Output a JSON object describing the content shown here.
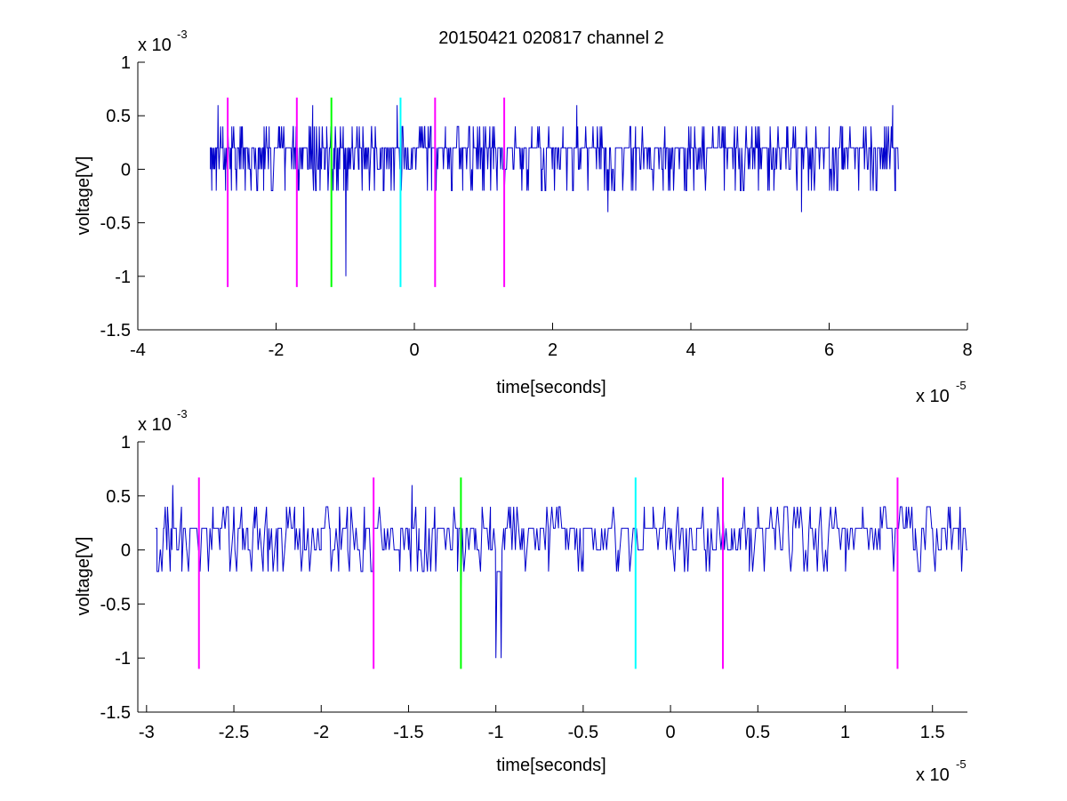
{
  "chart_data": [
    {
      "type": "line",
      "title": "20150421 020817 channel 2",
      "xlabel": "time[seconds]",
      "ylabel": "voltage[V]",
      "x_multiplier": {
        "base": "x 10",
        "exponent": "-5"
      },
      "y_multiplier": {
        "base": "x 10",
        "exponent": "-3"
      },
      "xlim": [
        -4,
        8
      ],
      "ylim": [
        -1.5,
        1
      ],
      "x_ticks": [
        -4,
        -2,
        0,
        2,
        4,
        6,
        8
      ],
      "x_tick_labels": [
        "-4",
        "-2",
        "0",
        "2",
        "4",
        "6",
        "8"
      ],
      "y_ticks": [
        1,
        0.5,
        0,
        -0.5,
        -1,
        -1.5
      ],
      "y_tick_labels": [
        "1",
        "0.5",
        "0",
        "-0.5",
        "-1",
        "-1.5"
      ],
      "grid": false,
      "series": [
        {
          "color": "#0000cc",
          "description": "noise trace with spikes",
          "x_range": [
            -2.95,
            7.0
          ],
          "baseline": 0.1,
          "points": [
            [
              -2.95,
              0.2
            ],
            [
              -2.93,
              -0.2
            ],
            [
              -2.9,
              0.0
            ],
            [
              -2.87,
              0.2
            ],
            [
              -2.84,
              0.6
            ],
            [
              -2.81,
              0.2
            ],
            [
              -2.77,
              0.4
            ],
            [
              -2.73,
              -0.2
            ],
            [
              -2.7,
              0.2
            ],
            [
              -2.64,
              0.4
            ],
            [
              -2.59,
              0.0
            ],
            [
              -2.5,
              0.4
            ],
            [
              -2.44,
              0.2
            ],
            [
              -2.33,
              0.2
            ],
            [
              -2.25,
              0.0
            ],
            [
              -2.18,
              -0.2
            ],
            [
              -2.1,
              0.4
            ],
            [
              -2.02,
              0.2
            ],
            [
              -1.95,
              0.4
            ],
            [
              -1.87,
              -0.2
            ],
            [
              -1.8,
              0.2
            ],
            [
              -1.75,
              0.4
            ],
            [
              -1.72,
              0.0
            ],
            [
              -1.68,
              -0.2
            ],
            [
              -1.62,
              0.2
            ],
            [
              -1.52,
              0.4
            ],
            [
              -1.47,
              0.6
            ],
            [
              -1.42,
              -0.2
            ],
            [
              -1.37,
              0.2
            ],
            [
              -1.3,
              0.0
            ],
            [
              -1.27,
              0.4
            ],
            [
              -1.2,
              -0.2
            ],
            [
              -1.15,
              0.2
            ],
            [
              -1.08,
              0.0
            ],
            [
              -1.02,
              -0.2
            ],
            [
              -0.99,
              -1.0
            ],
            [
              -0.95,
              0.2
            ],
            [
              -0.9,
              0.4
            ],
            [
              -0.8,
              0.0
            ],
            [
              -0.7,
              0.2
            ],
            [
              -0.62,
              0.4
            ],
            [
              -0.5,
              0.0
            ],
            [
              -0.45,
              -0.2
            ],
            [
              -0.38,
              0.2
            ],
            [
              -0.25,
              0.6
            ],
            [
              -0.18,
              0.0
            ],
            [
              -0.1,
              0.2
            ],
            [
              0.02,
              0.0
            ],
            [
              0.15,
              0.4
            ],
            [
              0.25,
              -0.2
            ],
            [
              0.35,
              0.2
            ],
            [
              0.45,
              0.4
            ],
            [
              0.55,
              0.0
            ],
            [
              0.7,
              -0.2
            ],
            [
              0.85,
              0.2
            ],
            [
              1.0,
              0.4
            ],
            [
              1.2,
              0.0
            ],
            [
              1.3,
              -0.2
            ],
            [
              1.5,
              0.2
            ],
            [
              1.7,
              0.4
            ],
            [
              1.85,
              0.0
            ],
            [
              2.0,
              0.2
            ],
            [
              2.15,
              0.4
            ],
            [
              2.3,
              -0.2
            ],
            [
              2.35,
              0.6
            ],
            [
              2.5,
              0.2
            ],
            [
              2.7,
              0.0
            ],
            [
              2.8,
              -0.4
            ],
            [
              2.95,
              0.2
            ],
            [
              3.2,
              0.4
            ],
            [
              3.4,
              0.0
            ],
            [
              3.6,
              -0.2
            ],
            [
              3.8,
              0.2
            ],
            [
              4.0,
              0.4
            ],
            [
              4.2,
              0.0
            ],
            [
              4.5,
              0.2
            ],
            [
              4.8,
              0.4
            ],
            [
              5.0,
              0.0
            ],
            [
              5.2,
              -0.2
            ],
            [
              5.4,
              0.4
            ],
            [
              5.6,
              -0.4
            ],
            [
              5.8,
              0.2
            ],
            [
              6.0,
              0.4
            ],
            [
              6.2,
              0.0
            ],
            [
              6.4,
              0.2
            ],
            [
              6.6,
              -0.2
            ],
            [
              6.8,
              0.4
            ],
            [
              6.92,
              0.6
            ],
            [
              6.96,
              -0.2
            ],
            [
              7.0,
              0.0
            ]
          ]
        }
      ],
      "vertical_markers": [
        {
          "x": -2.7,
          "y_range": [
            -1.1,
            0.67
          ],
          "color": "#ff00ff"
        },
        {
          "x": -1.7,
          "y_range": [
            -1.1,
            0.67
          ],
          "color": "#ff00ff"
        },
        {
          "x": -1.2,
          "y_range": [
            -1.1,
            0.67
          ],
          "color": "#00ff00"
        },
        {
          "x": -0.2,
          "y_range": [
            -1.1,
            0.67
          ],
          "color": "#00ffff"
        },
        {
          "x": 0.3,
          "y_range": [
            -1.1,
            0.67
          ],
          "color": "#ff00ff"
        },
        {
          "x": 1.3,
          "y_range": [
            -1.1,
            0.67
          ],
          "color": "#ff00ff"
        }
      ]
    },
    {
      "type": "line",
      "xlabel": "time[seconds]",
      "ylabel": "voltage[V]",
      "x_multiplier": {
        "base": "x 10",
        "exponent": "-5"
      },
      "y_multiplier": {
        "base": "x 10",
        "exponent": "-3"
      },
      "xlim": [
        -3.05,
        1.7
      ],
      "ylim": [
        -1.5,
        1
      ],
      "x_ticks": [
        -3,
        -2.5,
        -2,
        -1.5,
        -1,
        -0.5,
        0,
        0.5,
        1,
        1.5
      ],
      "x_tick_labels": [
        "-3",
        "-2.5",
        "-2",
        "-1.5",
        "-1",
        "-0.5",
        "0",
        "0.5",
        "1",
        "1.5"
      ],
      "y_ticks": [
        1,
        0.5,
        0,
        -0.5,
        -1,
        -1.5
      ],
      "y_tick_labels": [
        "1",
        "0.5",
        "0",
        "-0.5",
        "-1",
        "-1.5"
      ],
      "grid": false,
      "series": [
        {
          "color": "#0000cc",
          "description": "zoomed noise trace",
          "x_range": [
            -2.95,
            1.7
          ],
          "points": [
            [
              -2.95,
              0.2
            ],
            [
              -2.94,
              -0.2
            ],
            [
              -2.92,
              0.0
            ],
            [
              -2.9,
              0.2
            ],
            [
              -2.88,
              0.4
            ],
            [
              -2.86,
              0.2
            ],
            [
              -2.85,
              0.6
            ],
            [
              -2.83,
              0.2
            ],
            [
              -2.8,
              0.4
            ],
            [
              -2.77,
              0.0
            ],
            [
              -2.74,
              0.2
            ],
            [
              -2.7,
              0.0
            ],
            [
              -2.66,
              0.2
            ],
            [
              -2.62,
              0.4
            ],
            [
              -2.58,
              0.0
            ],
            [
              -2.55,
              0.2
            ],
            [
              -2.5,
              0.4
            ],
            [
              -2.45,
              0.0
            ],
            [
              -2.42,
              0.2
            ],
            [
              -2.38,
              0.4
            ],
            [
              -2.33,
              0.0
            ],
            [
              -2.3,
              0.2
            ],
            [
              -2.25,
              -0.2
            ],
            [
              -2.2,
              0.2
            ],
            [
              -2.15,
              0.0
            ],
            [
              -2.1,
              0.4
            ],
            [
              -2.05,
              0.2
            ],
            [
              -2.0,
              0.0
            ],
            [
              -1.95,
              0.2
            ],
            [
              -1.9,
              -0.2
            ],
            [
              -1.85,
              0.4
            ],
            [
              -1.8,
              0.2
            ],
            [
              -1.75,
              0.0
            ],
            [
              -1.7,
              0.2
            ],
            [
              -1.64,
              0.0
            ],
            [
              -1.6,
              0.2
            ],
            [
              -1.55,
              -0.2
            ],
            [
              -1.5,
              0.0
            ],
            [
              -1.48,
              0.6
            ],
            [
              -1.44,
              0.2
            ],
            [
              -1.4,
              0.0
            ],
            [
              -1.35,
              0.4
            ],
            [
              -1.3,
              0.2
            ],
            [
              -1.25,
              0.0
            ],
            [
              -1.22,
              -0.2
            ],
            [
              -1.2,
              -0.4
            ],
            [
              -1.17,
              0.2
            ],
            [
              -1.12,
              0.0
            ],
            [
              -1.08,
              0.2
            ],
            [
              -1.05,
              0.2
            ],
            [
              -1.03,
              0.0
            ],
            [
              -1.0,
              -1.0
            ],
            [
              -0.97,
              -1.0
            ],
            [
              -0.95,
              0.0
            ],
            [
              -0.92,
              0.2
            ],
            [
              -0.85,
              0.0
            ],
            [
              -0.8,
              0.2
            ],
            [
              -0.75,
              0.0
            ],
            [
              -0.7,
              0.2
            ],
            [
              -0.64,
              0.4
            ],
            [
              -0.6,
              0.0
            ],
            [
              -0.55,
              0.2
            ],
            [
              -0.5,
              0.0
            ],
            [
              -0.5,
              -0.2
            ],
            [
              -0.45,
              0.2
            ],
            [
              -0.4,
              0.0
            ],
            [
              -0.35,
              0.2
            ],
            [
              -0.3,
              0.0
            ],
            [
              -0.25,
              0.2
            ],
            [
              -0.2,
              0.0
            ],
            [
              -0.15,
              0.4
            ],
            [
              -0.1,
              0.2
            ],
            [
              -0.05,
              0.2
            ],
            [
              0.0,
              0.0
            ],
            [
              0.08,
              -0.2
            ],
            [
              0.15,
              0.2
            ],
            [
              0.2,
              0.0
            ],
            [
              0.3,
              0.4
            ],
            [
              0.35,
              0.2
            ],
            [
              0.4,
              0.0
            ],
            [
              0.45,
              0.2
            ],
            [
              0.5,
              0.4
            ],
            [
              0.6,
              0.0
            ],
            [
              0.7,
              0.2
            ],
            [
              0.8,
              0.4
            ],
            [
              0.9,
              0.0
            ],
            [
              1.0,
              0.2
            ],
            [
              1.1,
              0.4
            ],
            [
              1.2,
              0.0
            ],
            [
              1.3,
              0.2
            ],
            [
              1.35,
              0.4
            ],
            [
              1.4,
              0.0
            ],
            [
              1.5,
              0.2
            ],
            [
              1.55,
              0.0
            ],
            [
              1.6,
              0.2
            ],
            [
              1.65,
              0.0
            ],
            [
              1.7,
              0.0
            ]
          ]
        }
      ],
      "vertical_markers": [
        {
          "x": -2.7,
          "y_range": [
            -1.1,
            0.67
          ],
          "color": "#ff00ff"
        },
        {
          "x": -1.7,
          "y_range": [
            -1.1,
            0.67
          ],
          "color": "#ff00ff"
        },
        {
          "x": -1.2,
          "y_range": [
            -1.1,
            0.67
          ],
          "color": "#00ff00"
        },
        {
          "x": -0.2,
          "y_range": [
            -1.1,
            0.67
          ],
          "color": "#00ffff"
        },
        {
          "x": 0.3,
          "y_range": [
            -1.1,
            0.67
          ],
          "color": "#ff00ff"
        },
        {
          "x": 1.3,
          "y_range": [
            -1.1,
            0.67
          ],
          "color": "#ff00ff"
        }
      ]
    }
  ]
}
